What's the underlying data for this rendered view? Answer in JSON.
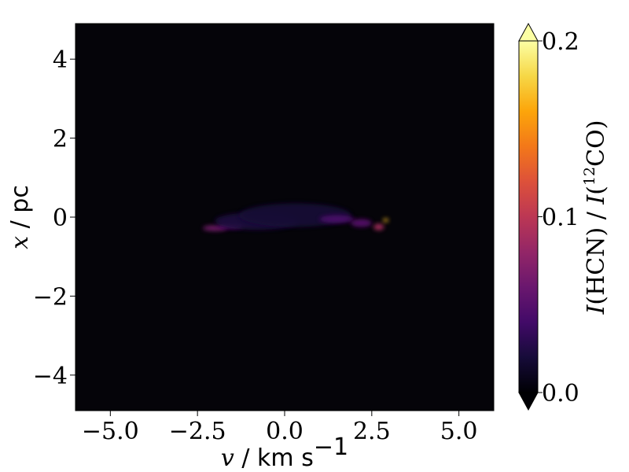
{
  "chart_data": {
    "type": "heatmap",
    "colormap": "inferno",
    "background_color": "#050409",
    "xlabel": {
      "math": "v",
      "text": " / km s",
      "sup": "−1"
    },
    "ylabel": {
      "math": "x",
      "text": " / pc"
    },
    "xlim": [
      -6.0,
      6.0
    ],
    "ylim": [
      -4.9,
      4.9
    ],
    "xticks": [
      -5.0,
      -2.5,
      0.0,
      2.5,
      5.0
    ],
    "xtick_labels": [
      "−5.0",
      "−2.5",
      "0.0",
      "2.5",
      "5.0"
    ],
    "yticks": [
      -4,
      -2,
      0,
      2,
      4
    ],
    "ytick_labels": [
      "−4",
      "−2",
      "0",
      "2",
      "4"
    ],
    "colorbar": {
      "min": 0.0,
      "max": 0.2,
      "ticks": [
        0.0,
        0.1,
        0.2
      ],
      "tick_labels": [
        "0.0",
        "0.1",
        "0.2"
      ],
      "extend": "both",
      "label": {
        "I1": "I",
        "mol1": "(HCN) / ",
        "I2": "I",
        "paren_open": "(",
        "iso": "12",
        "mol2": "CO)"
      }
    },
    "emission_blobs": [
      {
        "v_center": -2.0,
        "x_center": -0.28,
        "v_width": 0.35,
        "x_width": 0.07,
        "value": 0.065
      },
      {
        "v_center": -1.55,
        "x_center": -0.22,
        "v_width": 0.35,
        "x_width": 0.08,
        "value": 0.05
      },
      {
        "v_center": -0.8,
        "x_center": -0.1,
        "v_width": 1.2,
        "x_width": 0.22,
        "value": 0.022
      },
      {
        "v_center": 0.3,
        "x_center": 0.05,
        "v_width": 1.6,
        "x_width": 0.3,
        "value": 0.018
      },
      {
        "v_center": 1.5,
        "x_center": -0.05,
        "v_width": 0.5,
        "x_width": 0.1,
        "value": 0.045
      },
      {
        "v_center": 2.2,
        "x_center": -0.15,
        "v_width": 0.3,
        "x_width": 0.1,
        "value": 0.05
      },
      {
        "v_center": 2.7,
        "x_center": -0.25,
        "v_width": 0.15,
        "x_width": 0.08,
        "value": 0.09
      },
      {
        "v_center": 2.9,
        "x_center": -0.08,
        "v_width": 0.08,
        "x_width": 0.04,
        "value": 0.17
      }
    ]
  }
}
